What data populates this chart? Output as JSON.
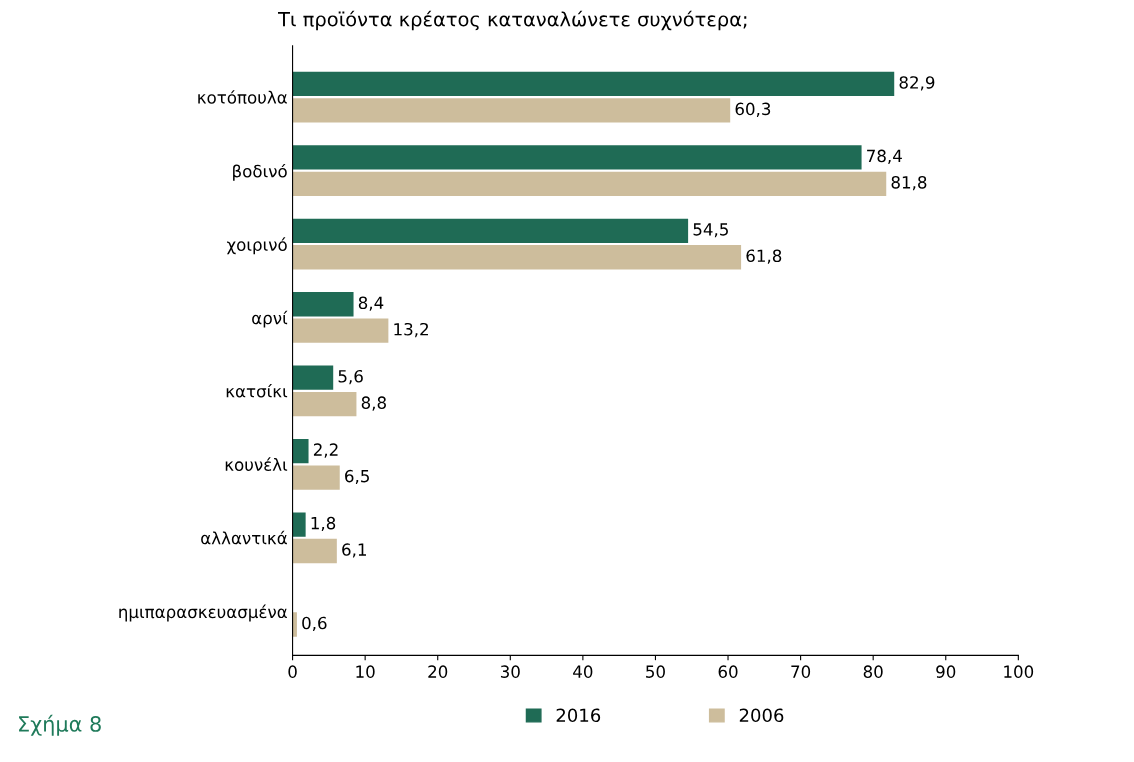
{
  "chart_data": {
    "type": "bar",
    "orientation": "horizontal",
    "title": "Τι προϊόντα κρέατος καταναλώνετε συχνότερα;",
    "categories": [
      "κοτόπουλα",
      "βοδινό",
      "χοιρινό",
      "αρνί",
      "κατσίκι",
      "κουνέλι",
      "αλλαντικά",
      "ημιπαρασκευασμένα"
    ],
    "series": [
      {
        "name": "2016",
        "color": "#1f6b55",
        "values": [
          82.9,
          78.4,
          54.5,
          8.4,
          5.6,
          2.2,
          1.8,
          null
        ],
        "value_labels": [
          "82,9",
          "78,4",
          "54,5",
          "8,4",
          "5,6",
          "2,2",
          "1,8",
          null
        ]
      },
      {
        "name": "2006",
        "color": "#cdbd9c",
        "values": [
          60.3,
          81.8,
          61.8,
          13.2,
          8.8,
          6.5,
          6.1,
          0.6
        ],
        "value_labels": [
          "60,3",
          "81,8",
          "61,8",
          "13,2",
          "8,8",
          "6,5",
          "6,1",
          "0,6"
        ]
      }
    ],
    "xlim": [
      0,
      100
    ],
    "xticks": [
      0,
      10,
      20,
      30,
      40,
      50,
      60,
      70,
      80,
      90,
      100
    ],
    "grid": false,
    "legend": "bottom",
    "annotations": [
      "Σχήμα 8"
    ]
  }
}
